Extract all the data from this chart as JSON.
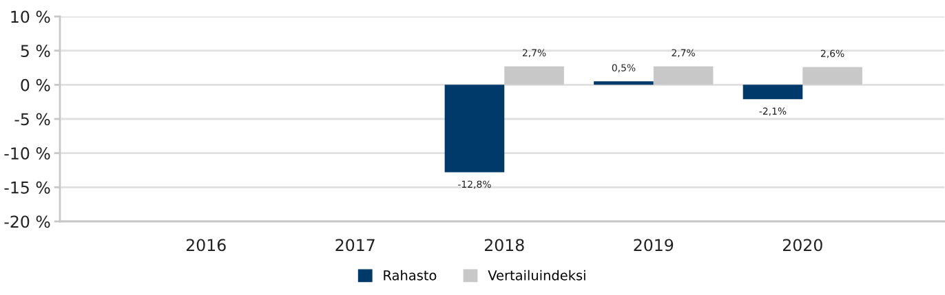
{
  "chart_data": {
    "type": "bar",
    "categories": [
      "2016",
      "2017",
      "2018",
      "2019",
      "2020"
    ],
    "series": [
      {
        "name": "Rahasto",
        "color": "#003a6a",
        "values": [
          null,
          null,
          -12.8,
          0.5,
          -2.1
        ],
        "value_labels": [
          null,
          null,
          "-12,8%",
          "0,5%",
          "-2,1%"
        ]
      },
      {
        "name": "Vertailuindeksi",
        "color": "#c8c8c9",
        "values": [
          null,
          null,
          2.7,
          2.7,
          2.6
        ],
        "value_labels": [
          null,
          null,
          "2,7%",
          "2,7%",
          "2,6%"
        ]
      }
    ],
    "ylim": [
      -20,
      10
    ],
    "yticks": [
      {
        "value": -20,
        "label": "-20 %"
      },
      {
        "value": -15,
        "label": "-15 %"
      },
      {
        "value": -10,
        "label": "-10 %"
      },
      {
        "value": -5,
        "label": "-5 %"
      },
      {
        "value": 0,
        "label": "0 %"
      },
      {
        "value": 5,
        "label": "5 %"
      },
      {
        "value": 10,
        "label": "10 %"
      }
    ],
    "grid": "y",
    "legend": "bottom"
  }
}
